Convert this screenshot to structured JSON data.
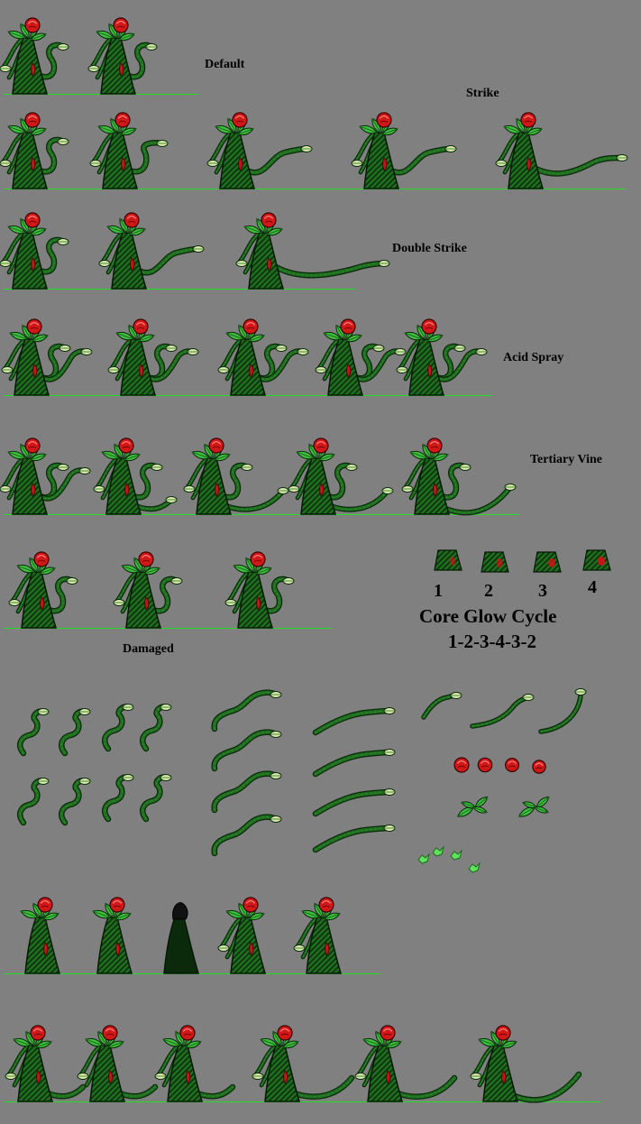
{
  "sheet": {
    "labels": {
      "default": "Default",
      "strike": "Strike",
      "double_strike": "Double Strike",
      "acid_spray": "Acid Spray",
      "tertiary_vine": "Tertiary Vine",
      "damaged": "Damaged"
    },
    "core_glow": {
      "frames": [
        "1",
        "2",
        "3",
        "4"
      ],
      "title": "Core Glow Cycle",
      "sequence": "1-2-3-4-3-2"
    },
    "colors": {
      "background": "#808080",
      "ground_line": "#22dd22",
      "plant_dark": "#0f3d0f",
      "plant_mid": "#1f6e1f",
      "leaf": "#3fbf3f",
      "flower": "#d01818",
      "core": "#c81414"
    }
  }
}
